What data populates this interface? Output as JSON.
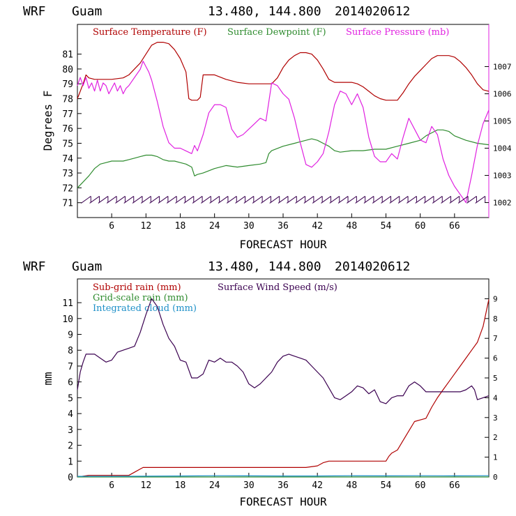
{
  "header": {
    "model": "WRF",
    "location": "Guam",
    "coords": "13.480, 144.800",
    "init": "2014020612"
  },
  "colors": {
    "temperature": "#b00000",
    "dewpoint": "#2e8b2e",
    "pressure": "#e020e0",
    "subgrid": "#b00000",
    "gridscale": "#2e8b2e",
    "cloud": "#1e90c8",
    "wind": "#3a0050",
    "barb": "#3a0050"
  },
  "chart_data": [
    {
      "type": "line",
      "xlabel": "FORECAST HOUR",
      "ylabel": "Degrees F",
      "xlim": [
        0,
        72
      ],
      "ylim": [
        70,
        83
      ],
      "y2lim": [
        1001.45,
        1008.55
      ],
      "x_ticks": [
        6,
        12,
        18,
        24,
        30,
        36,
        42,
        48,
        54,
        60,
        66
      ],
      "x_tick_labels": [
        "6",
        "12",
        "18",
        "24",
        "30",
        "36",
        "42",
        "48",
        "54",
        "60",
        "66"
      ],
      "y_ticks": [
        71,
        72,
        73,
        74,
        75,
        76,
        77,
        78,
        79,
        80,
        81
      ],
      "y_tick_labels": [
        "71",
        "72",
        "73",
        "74",
        "75",
        "76",
        "77",
        "78",
        "79",
        "80",
        "81"
      ],
      "y2_ticks": [
        1002,
        1003,
        1004,
        1005,
        1006,
        1007
      ],
      "y2_tick_labels": [
        "1002",
        "1003",
        "1004",
        "1005",
        "1006",
        "1007"
      ],
      "series": [
        {
          "name": "Surface Temperature (F)",
          "axis": "left",
          "x": [
            0,
            1,
            1.5,
            2,
            3,
            4,
            6,
            8,
            9,
            10,
            11,
            12,
            12.5,
            13,
            14,
            15,
            16,
            17,
            18,
            19,
            19.5,
            20,
            21,
            21.5,
            22,
            23,
            24,
            26,
            28,
            30,
            32,
            33,
            34,
            35,
            36,
            37,
            38,
            39,
            40,
            41,
            42,
            43,
            44,
            45,
            46,
            48,
            49,
            50,
            51,
            52,
            53,
            54,
            55,
            56,
            57,
            58,
            59,
            60,
            61,
            62,
            63,
            64,
            65,
            66,
            67,
            68,
            69,
            70,
            71,
            72
          ],
          "values": [
            78.0,
            79.0,
            79.6,
            79.4,
            79.3,
            79.3,
            79.3,
            79.4,
            79.6,
            80.0,
            80.4,
            81.0,
            81.3,
            81.6,
            81.8,
            81.8,
            81.7,
            81.3,
            80.7,
            79.8,
            78.0,
            77.9,
            77.9,
            78.1,
            79.6,
            79.6,
            79.6,
            79.3,
            79.1,
            79.0,
            79.0,
            79.0,
            79.0,
            79.4,
            80.1,
            80.6,
            80.9,
            81.1,
            81.1,
            81.0,
            80.6,
            80.0,
            79.3,
            79.1,
            79.1,
            79.1,
            79.0,
            78.8,
            78.5,
            78.2,
            78.0,
            77.9,
            77.9,
            77.9,
            78.4,
            79.0,
            79.5,
            79.9,
            80.3,
            80.7,
            80.9,
            80.9,
            80.9,
            80.8,
            80.5,
            80.1,
            79.6,
            79.0,
            78.6,
            78.5
          ],
          "color": "#b00000"
        },
        {
          "name": "Surface Dewpoint (F)",
          "axis": "left",
          "x": [
            0,
            1,
            2,
            3,
            4,
            5,
            6,
            8,
            9,
            10,
            11,
            12,
            13,
            14,
            15,
            16,
            17,
            18,
            19,
            20,
            20.5,
            21,
            22,
            24,
            26,
            28,
            30,
            32,
            33,
            33.5,
            34,
            36,
            38,
            39,
            40,
            41,
            42,
            43,
            44,
            45,
            46,
            48,
            50,
            52,
            54,
            56,
            58,
            60,
            61,
            62,
            63,
            64,
            65,
            66,
            68,
            70,
            72
          ],
          "values": [
            72.0,
            72.4,
            72.8,
            73.3,
            73.6,
            73.7,
            73.8,
            73.8,
            73.9,
            74.0,
            74.1,
            74.2,
            74.2,
            74.1,
            73.9,
            73.8,
            73.8,
            73.7,
            73.6,
            73.4,
            72.8,
            72.9,
            73.0,
            73.3,
            73.5,
            73.4,
            73.5,
            73.6,
            73.7,
            74.3,
            74.5,
            74.8,
            75.0,
            75.1,
            75.2,
            75.3,
            75.2,
            75.0,
            74.8,
            74.5,
            74.4,
            74.5,
            74.5,
            74.6,
            74.6,
            74.8,
            75.0,
            75.2,
            75.5,
            75.7,
            75.9,
            75.9,
            75.8,
            75.5,
            75.2,
            75.0,
            74.9
          ],
          "color": "#2e8b2e"
        },
        {
          "name": "Surface Pressure (mb)",
          "axis": "right",
          "x": [
            0,
            0.5,
            1,
            1.5,
            2,
            2.5,
            3,
            3.5,
            4,
            4.5,
            5,
            5.5,
            6,
            6.5,
            7,
            7.5,
            8,
            8.5,
            9,
            10,
            11,
            11.5,
            12,
            12.5,
            13,
            14,
            15,
            16,
            17,
            18,
            19,
            20,
            20.5,
            21,
            22,
            23,
            24,
            25,
            26,
            27,
            28,
            29,
            30,
            31,
            32,
            33,
            34,
            35,
            36,
            37,
            38,
            39,
            40,
            41,
            42,
            43,
            44,
            45,
            46,
            47,
            48,
            49,
            50,
            51,
            52,
            53,
            54,
            55,
            56,
            57,
            58,
            59,
            60,
            61,
            62,
            63,
            64,
            65,
            66,
            67,
            68,
            69,
            70,
            71,
            72
          ],
          "values": [
            1006.3,
            1006.6,
            1006.3,
            1006.6,
            1006.2,
            1006.4,
            1006.1,
            1006.5,
            1006.1,
            1006.4,
            1006.3,
            1006.0,
            1006.2,
            1006.4,
            1006.1,
            1006.3,
            1006.0,
            1006.2,
            1006.3,
            1006.6,
            1006.9,
            1007.2,
            1007.0,
            1006.8,
            1006.5,
            1005.7,
            1004.8,
            1004.2,
            1004.0,
            1004.0,
            1003.9,
            1003.8,
            1004.1,
            1003.9,
            1004.5,
            1005.3,
            1005.6,
            1005.6,
            1005.5,
            1004.7,
            1004.4,
            1004.5,
            1004.7,
            1004.9,
            1005.1,
            1005.0,
            1006.4,
            1006.3,
            1006.0,
            1005.8,
            1005.1,
            1004.2,
            1003.4,
            1003.3,
            1003.5,
            1003.8,
            1004.6,
            1005.6,
            1006.1,
            1006.0,
            1005.6,
            1006.0,
            1005.5,
            1004.4,
            1003.7,
            1003.5,
            1003.5,
            1003.8,
            1003.6,
            1004.4,
            1005.1,
            1004.7,
            1004.3,
            1004.2,
            1004.8,
            1004.5,
            1003.6,
            1003.0,
            1002.6,
            1002.3,
            1002.0,
            1003.0,
            1004.1,
            1004.9,
            1005.4
          ],
          "color": "#e020e0"
        }
      ],
      "wind_barbs": {
        "y": 71.2,
        "x": [
          1.5,
          3,
          4.5,
          6,
          7.5,
          9,
          10.5,
          12,
          13.5,
          15,
          16.5,
          18,
          19.5,
          21,
          22.5,
          24,
          25.5,
          27,
          28.5,
          30,
          31.5,
          33,
          34.5,
          36,
          37.5,
          39,
          40.5,
          42,
          43.5,
          45,
          46.5,
          48,
          49.5,
          51,
          52.5,
          54,
          55.5,
          57,
          58.5,
          60,
          61.5,
          63,
          64.5,
          66,
          67.5,
          69,
          70.5
        ]
      }
    },
    {
      "type": "line",
      "xlabel": "FORECAST HOUR",
      "ylabel": "mm",
      "xlim": [
        0,
        72
      ],
      "ylim": [
        0,
        12.5
      ],
      "y2lim": [
        0,
        10
      ],
      "x_ticks": [
        6,
        12,
        18,
        24,
        30,
        36,
        42,
        48,
        54,
        60,
        66
      ],
      "x_tick_labels": [
        "6",
        "12",
        "18",
        "24",
        "30",
        "36",
        "42",
        "48",
        "54",
        "60",
        "66"
      ],
      "y_ticks": [
        0,
        1,
        2,
        3,
        4,
        5,
        6,
        7,
        8,
        9,
        10,
        11
      ],
      "y_tick_labels": [
        "0",
        "1",
        "2",
        "3",
        "4",
        "5",
        "6",
        "7",
        "8",
        "9",
        "10",
        "11"
      ],
      "y2_ticks": [
        0,
        1,
        2,
        3,
        4,
        5,
        6,
        7,
        8,
        9
      ],
      "y2_tick_labels": [
        "0",
        "1",
        "2",
        "3",
        "4",
        "5",
        "6",
        "7",
        "8",
        "9"
      ],
      "series": [
        {
          "name": "Sub-grid rain (mm)",
          "axis": "left",
          "x": [
            0,
            2,
            9,
            10,
            11,
            11.5,
            12,
            20,
            30,
            40,
            42,
            43,
            44,
            46,
            52,
            54,
            54.5,
            55,
            56,
            57,
            58,
            59,
            60,
            61,
            62,
            63,
            64,
            65,
            66,
            67,
            68,
            69,
            70,
            71,
            72
          ],
          "values": [
            0.0,
            0.1,
            0.1,
            0.3,
            0.5,
            0.6,
            0.6,
            0.6,
            0.6,
            0.6,
            0.7,
            0.9,
            1.0,
            1.0,
            1.0,
            1.0,
            1.3,
            1.5,
            1.7,
            2.3,
            2.9,
            3.5,
            3.6,
            3.7,
            4.4,
            5.0,
            5.5,
            6.0,
            6.5,
            7.0,
            7.5,
            8.0,
            8.5,
            9.5,
            11.2
          ],
          "color": "#b00000"
        },
        {
          "name": "Grid-scale rain (mm)",
          "axis": "left",
          "x": [
            0,
            72
          ],
          "values": [
            0.0,
            0.0
          ],
          "color": "#2e8b2e"
        },
        {
          "name": "Integrated cloud (mm)",
          "axis": "left",
          "x": [
            0,
            6,
            12,
            18,
            24,
            30,
            36,
            42,
            48,
            54,
            60,
            66,
            72
          ],
          "values": [
            0.04,
            0.04,
            0.05,
            0.06,
            0.08,
            0.07,
            0.06,
            0.06,
            0.08,
            0.07,
            0.08,
            0.07,
            0.08
          ],
          "color": "#1e90c8"
        },
        {
          "name": "Surface Wind Speed (m/s)",
          "axis": "right",
          "x": [
            0,
            0.5,
            1,
            1.5,
            2,
            3,
            4,
            5,
            6,
            7,
            8,
            9,
            10,
            11,
            12,
            13,
            14,
            15,
            16,
            17,
            18,
            19,
            20,
            21,
            22,
            23,
            24,
            25,
            26,
            27,
            28,
            29,
            30,
            31,
            32,
            33,
            34,
            35,
            36,
            37,
            38,
            39,
            40,
            41,
            42,
            43,
            44,
            45,
            46,
            47,
            48,
            49,
            50,
            51,
            52,
            53,
            54,
            55,
            56,
            57,
            58,
            59,
            60,
            61,
            62,
            63,
            64,
            65,
            66,
            67,
            68,
            69,
            69.5,
            70,
            71,
            72
          ],
          "values": [
            4.4,
            5.3,
            5.8,
            6.2,
            6.2,
            6.2,
            6.0,
            5.8,
            5.9,
            6.3,
            6.4,
            6.5,
            6.6,
            7.3,
            8.2,
            9.0,
            8.6,
            7.7,
            7.0,
            6.6,
            5.9,
            5.8,
            5.0,
            5.0,
            5.2,
            5.9,
            5.8,
            6.0,
            5.8,
            5.8,
            5.6,
            5.3,
            4.7,
            4.5,
            4.7,
            5.0,
            5.3,
            5.8,
            6.1,
            6.2,
            6.1,
            6.0,
            5.9,
            5.6,
            5.3,
            5.0,
            4.5,
            4.0,
            3.9,
            4.1,
            4.3,
            4.6,
            4.5,
            4.2,
            4.4,
            3.8,
            3.7,
            4.0,
            4.1,
            4.1,
            4.6,
            4.8,
            4.6,
            4.3,
            4.3,
            4.3,
            4.3,
            4.3,
            4.3,
            4.3,
            4.4,
            4.6,
            4.4,
            3.9,
            4.0,
            4.1
          ],
          "color": "#3a0050"
        }
      ]
    }
  ]
}
